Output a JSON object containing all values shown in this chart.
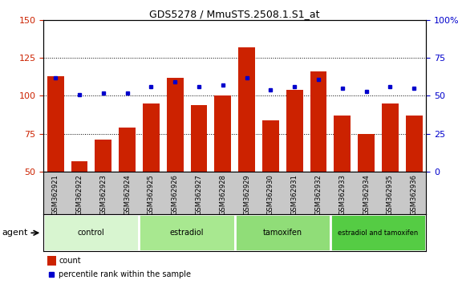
{
  "title": "GDS5278 / MmuSTS.2508.1.S1_at",
  "samples": [
    "GSM362921",
    "GSM362922",
    "GSM362923",
    "GSM362924",
    "GSM362925",
    "GSM362926",
    "GSM362927",
    "GSM362928",
    "GSM362929",
    "GSM362930",
    "GSM362931",
    "GSM362932",
    "GSM362933",
    "GSM362934",
    "GSM362935",
    "GSM362936"
  ],
  "count_values": [
    113,
    57,
    71,
    79,
    95,
    112,
    94,
    100,
    132,
    84,
    104,
    116,
    87,
    75,
    95,
    87
  ],
  "percentile_values": [
    62,
    51,
    52,
    52,
    56,
    59,
    56,
    57,
    62,
    54,
    56,
    61,
    55,
    53,
    56,
    55
  ],
  "ylim_left": [
    50,
    150
  ],
  "ylim_right": [
    0,
    100
  ],
  "yticks_left": [
    50,
    75,
    100,
    125,
    150
  ],
  "yticks_right": [
    0,
    25,
    50,
    75,
    100
  ],
  "groups": [
    {
      "label": "control",
      "start": 0,
      "end": 4,
      "color": "#d8f5d0"
    },
    {
      "label": "estradiol",
      "start": 4,
      "end": 8,
      "color": "#a8e890"
    },
    {
      "label": "tamoxifen",
      "start": 8,
      "end": 12,
      "color": "#90dd78"
    },
    {
      "label": "estradiol and tamoxifen",
      "start": 12,
      "end": 16,
      "color": "#55cc44"
    }
  ],
  "agent_label": "agent",
  "bar_color": "#cc2200",
  "dot_color": "#0000cc",
  "legend_count_label": "count",
  "legend_percentile_label": "percentile rank within the sample",
  "tick_area_color": "#c8c8c8"
}
